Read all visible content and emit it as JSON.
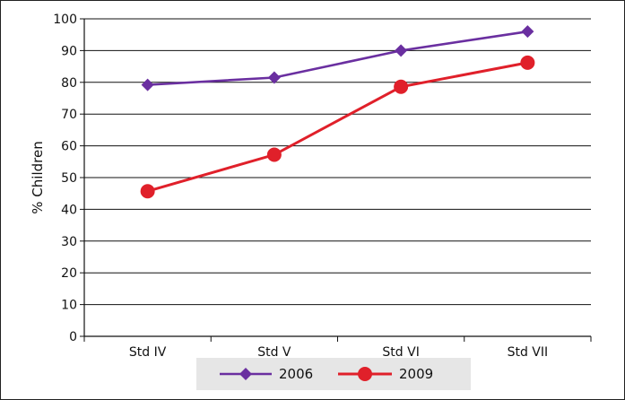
{
  "chart_data": {
    "type": "line",
    "categories": [
      "Std IV",
      "Std V",
      "Std VI",
      "Std VII"
    ],
    "series": [
      {
        "name": "2006",
        "values": [
          79.2,
          81.5,
          90.0,
          96.0
        ],
        "color": "#6a2fa0",
        "marker": "diamond"
      },
      {
        "name": "2009",
        "values": [
          45.7,
          57.2,
          78.6,
          86.2
        ],
        "color": "#e0202a",
        "marker": "circle"
      }
    ],
    "title": "",
    "xlabel": "",
    "ylabel": "% Children",
    "ylim": [
      0,
      100
    ],
    "yticks": [
      "0",
      "10",
      "20",
      "30",
      "40",
      "50",
      "60",
      "70",
      "80",
      "90",
      "100"
    ],
    "grid": true,
    "legend_position": "bottom",
    "colors": {
      "axis": "#111111",
      "grid": "#111111",
      "legend_bg": "#e6e6e6"
    }
  }
}
